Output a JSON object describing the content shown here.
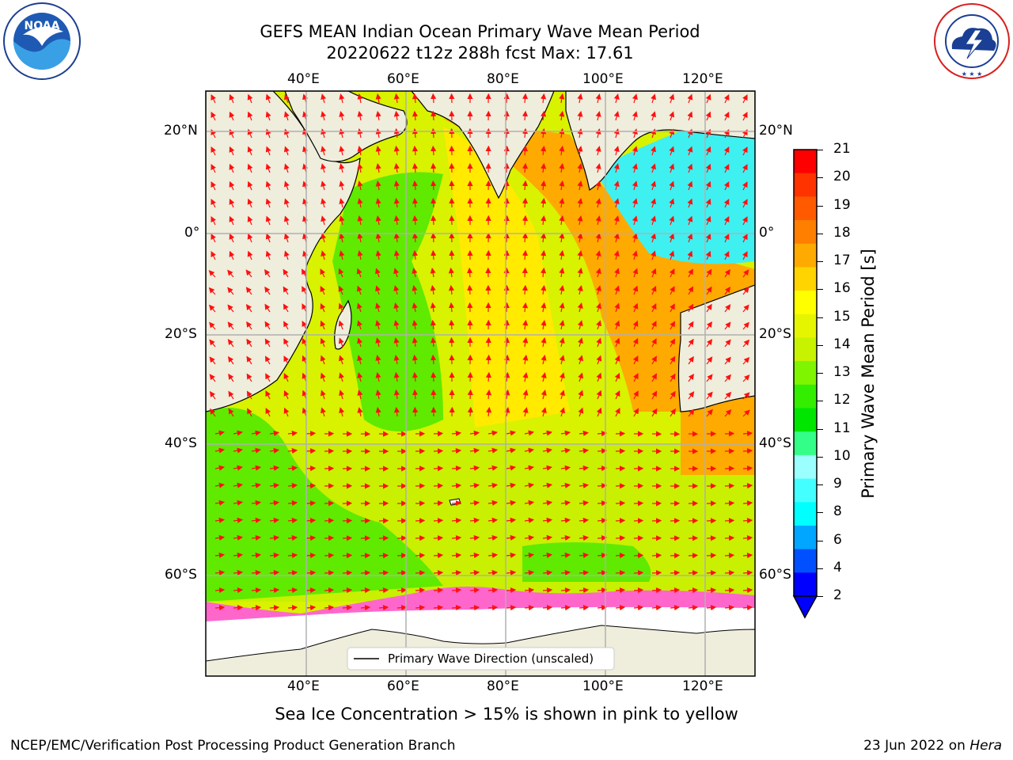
{
  "title": {
    "line1": "GEFS MEAN Indian Ocean Primary Wave Mean Period",
    "line2": "20220622 t12z 288h fcst   Max: 17.61"
  },
  "map": {
    "lon_ticks": [
      "40°E",
      "60°E",
      "80°E",
      "100°E",
      "120°E"
    ],
    "lat_ticks": [
      "20°N",
      "0°",
      "20°S",
      "40°S",
      "60°S"
    ],
    "legend_label": "Primary Wave Direction (unscaled)",
    "land_color": "#efeddc",
    "ice_note": "Sea Ice Concentration > 15% is shown in pink to yellow"
  },
  "colorbar": {
    "label": "Primary Wave Mean Period [s]",
    "ticks": [
      "21",
      "20",
      "19",
      "18",
      "17",
      "16",
      "15",
      "14",
      "13",
      "12",
      "11",
      "10",
      "9",
      "8",
      "6",
      "4",
      "2"
    ],
    "colors": [
      "#ff0000",
      "#ff3300",
      "#ff5a00",
      "#ff7f00",
      "#ffaa00",
      "#ffd400",
      "#ffff00",
      "#e5f500",
      "#c7f200",
      "#7ff500",
      "#33ee00",
      "#00e600",
      "#33ff88",
      "#9cffff",
      "#44ffff",
      "#00ffff",
      "#00a6ff",
      "#0050ff",
      "#0000ff"
    ]
  },
  "logos": {
    "noaa": "NOAA",
    "noaa_ring": "NATIONAL OCEANIC AND ATMOSPHERIC ADMINISTRATION · U.S. DEPARTMENT OF COMMERCE",
    "nws_ring": "NATIONAL WEATHER SERVICE"
  },
  "footer": {
    "left": "NCEP/EMC/Verification Post Processing Product Generation Branch",
    "right_date": "23 Jun 2022 on ",
    "right_host": "Hera"
  }
}
